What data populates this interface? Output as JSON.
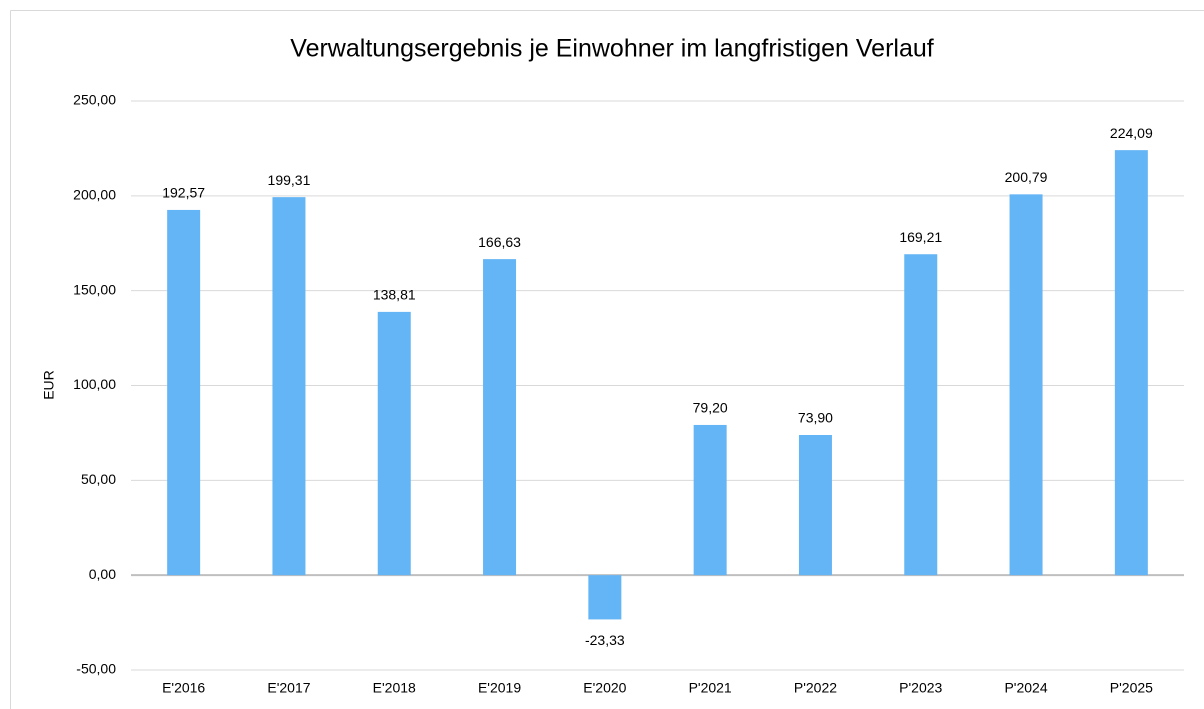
{
  "chart_data": {
    "type": "bar",
    "title": "Verwaltungsergebnis je Einwohner im langfristigen Verlauf",
    "y_label": "EUR",
    "categories": [
      "E'2016",
      "E'2017",
      "E'2018",
      "E'2019",
      "E'2020",
      "P'2021",
      "P'2022",
      "P'2023",
      "P'2024",
      "P'2025"
    ],
    "values": [
      192.57,
      199.31,
      138.81,
      166.63,
      -23.33,
      79.2,
      73.9,
      169.21,
      200.79,
      224.09
    ],
    "value_labels": [
      "192,57",
      "199,31",
      "138,81",
      "166,63",
      "-23,33",
      "79,20",
      "73,90",
      "169,21",
      "200,79",
      "224,09"
    ],
    "color": "#64b5f6",
    "ylim": [
      -50,
      250
    ],
    "yticks": [
      {
        "value": -50,
        "label": "-50,00"
      },
      {
        "value": 0,
        "label": "0,00"
      },
      {
        "value": 50,
        "label": "50,00"
      },
      {
        "value": 100,
        "label": "100,00"
      },
      {
        "value": 150,
        "label": "150,00"
      },
      {
        "value": 200,
        "label": "200,00"
      },
      {
        "value": 250,
        "label": "250,00"
      }
    ],
    "grid": true
  }
}
